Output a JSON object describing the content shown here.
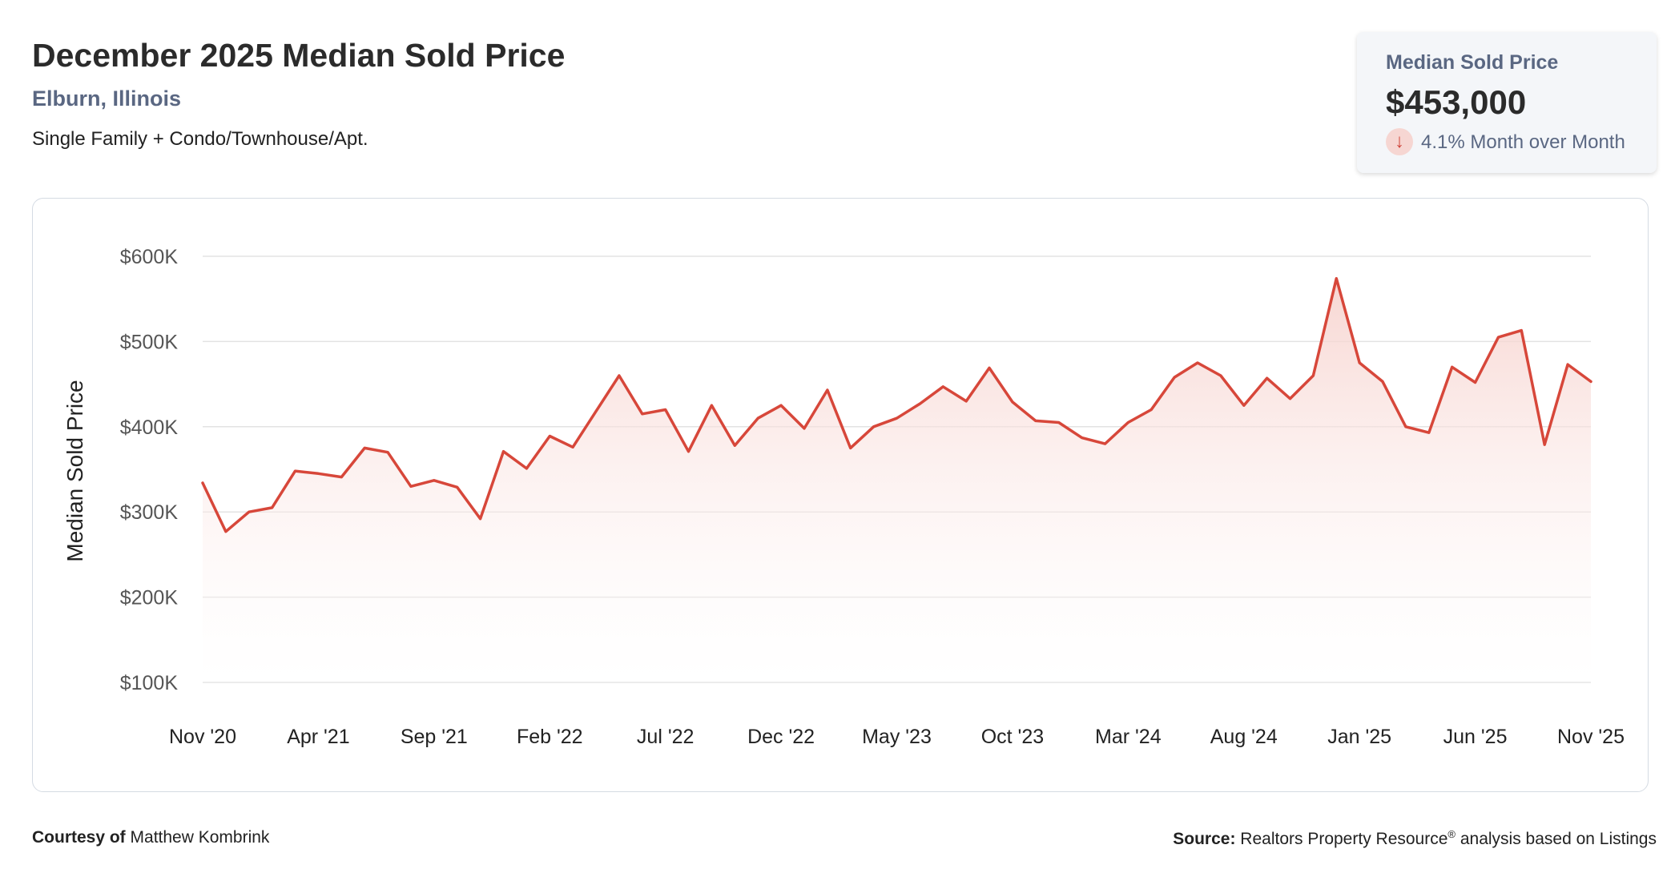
{
  "header": {
    "title": "December 2025 Median Sold Price",
    "subtitle": "Elburn, Illinois",
    "property_type": "Single Family + Condo/Townhouse/Apt."
  },
  "stat_card": {
    "label": "Median Sold Price",
    "value": "$453,000",
    "change_icon": "arrow-down-icon",
    "change_text": "4.1% Month over Month"
  },
  "footer": {
    "courtesy_label": "Courtesy of",
    "courtesy_name": "Matthew Kombrink",
    "source_label": "Source:",
    "source_text": "Realtors Property Resource",
    "source_reg": "®",
    "source_suffix": " analysis based on Listings"
  },
  "colors": {
    "line": "#d7473a",
    "fill_top": "#f6cfca",
    "grid": "#e3e3e3"
  },
  "chart_data": {
    "type": "area",
    "ylabel": "Median Sold Price",
    "xlabel": "",
    "ylim": [
      100000,
      600000
    ],
    "y_ticks": [
      100000,
      200000,
      300000,
      400000,
      500000,
      600000
    ],
    "y_tick_labels": [
      "$100K",
      "$200K",
      "$300K",
      "$400K",
      "$500K",
      "$600K"
    ],
    "x_tick_labels": [
      "Nov '20",
      "Apr '21",
      "Sep '21",
      "Feb '22",
      "Jul '22",
      "Dec '22",
      "May '23",
      "Oct '23",
      "Mar '24",
      "Aug '24",
      "Jan '25",
      "Jun '25",
      "Nov '25"
    ],
    "x_tick_months": [
      "2020-11",
      "2021-04",
      "2021-09",
      "2022-02",
      "2022-07",
      "2022-12",
      "2023-05",
      "2023-10",
      "2024-03",
      "2024-08",
      "2025-01",
      "2025-06",
      "2025-11"
    ],
    "grid": true,
    "series": [
      {
        "months": [
          "2020-11",
          "2020-12",
          "2021-01",
          "2021-02",
          "2021-03",
          "2021-04",
          "2021-05",
          "2021-06",
          "2021-07",
          "2021-08",
          "2021-09",
          "2021-10",
          "2021-11",
          "2021-12",
          "2022-01",
          "2022-02",
          "2022-03",
          "2022-04",
          "2022-05",
          "2022-06",
          "2022-07",
          "2022-08",
          "2022-09",
          "2022-10",
          "2022-11",
          "2022-12",
          "2023-01",
          "2023-02",
          "2023-03",
          "2023-04",
          "2023-05",
          "2023-06",
          "2023-07",
          "2023-08",
          "2023-09",
          "2023-10",
          "2023-11",
          "2023-12",
          "2024-01",
          "2024-02",
          "2024-03",
          "2024-04",
          "2024-05",
          "2024-06",
          "2024-07",
          "2024-08",
          "2024-09",
          "2024-10",
          "2024-11",
          "2024-12",
          "2025-01",
          "2025-02",
          "2025-03",
          "2025-04",
          "2025-05",
          "2025-06",
          "2025-07",
          "2025-08",
          "2025-09",
          "2025-10",
          "2025-11"
        ],
        "values": [
          334000,
          277000,
          300000,
          305000,
          348000,
          345000,
          341000,
          375000,
          370000,
          330000,
          337000,
          329000,
          292000,
          371000,
          351000,
          389000,
          376000,
          418000,
          460000,
          415000,
          420000,
          371000,
          425000,
          378000,
          410000,
          425000,
          398000,
          443000,
          375000,
          400000,
          410000,
          427000,
          447000,
          430000,
          469000,
          429000,
          407000,
          405000,
          387000,
          380000,
          405000,
          420000,
          458000,
          475000,
          460000,
          425000,
          457000,
          433000,
          460000,
          574000,
          475000,
          453000,
          400000,
          393000,
          470000,
          452000,
          505000,
          513000,
          379000,
          473000,
          453000
        ]
      }
    ]
  }
}
